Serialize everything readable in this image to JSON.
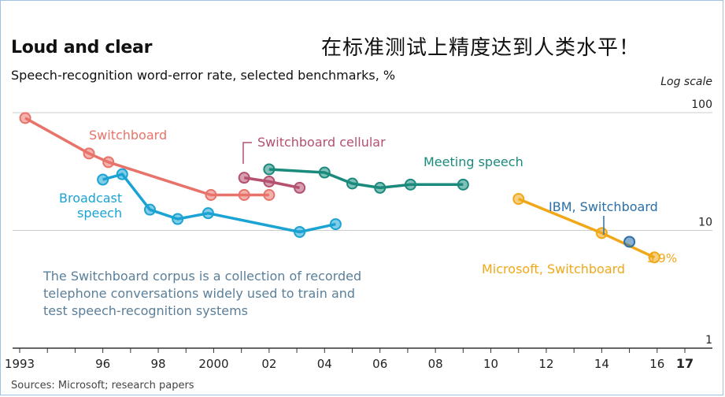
{
  "title": "Loud and clear",
  "cn_title": "在标准测试上精度达到人类水平！",
  "subtitle": "Speech-recognition word-error rate, selected benchmarks, %",
  "scale_note": "Log scale",
  "source": "Sources: Microsoft; research papers",
  "note": "The Switchboard corpus is a collection of recorded telephone conversations widely used to train and test speech-recognition systems",
  "colors": {
    "switchboard": "#e8736a",
    "switchboard_cellular": "#b5506f",
    "broadcast": "#1aa3d3",
    "meeting": "#1a8a7c",
    "microsoft": "#f0a818",
    "ibm": "#2a6fa8",
    "grid": "#cccccc",
    "axis": "#333333"
  },
  "chart_data": {
    "type": "line",
    "yscale": "log",
    "ylim": [
      1,
      100
    ],
    "yticks": [
      "1",
      "10",
      "100"
    ],
    "xlim": [
      1993,
      2017
    ],
    "xticks": [
      {
        "year": 1993,
        "label": "1993"
      },
      {
        "year": 1996,
        "label": "96"
      },
      {
        "year": 1998,
        "label": "98"
      },
      {
        "year": 2000,
        "label": "2000"
      },
      {
        "year": 2002,
        "label": "02"
      },
      {
        "year": 2004,
        "label": "04"
      },
      {
        "year": 2006,
        "label": "06"
      },
      {
        "year": 2008,
        "label": "08"
      },
      {
        "year": 2010,
        "label": "10"
      },
      {
        "year": 2012,
        "label": "12"
      },
      {
        "year": 2014,
        "label": "14"
      },
      {
        "year": 2016,
        "label": "16"
      },
      {
        "year": 2017,
        "label": "17"
      }
    ],
    "series": [
      {
        "name": "Switchboard",
        "key": "switchboard",
        "points": [
          [
            1993.2,
            90
          ],
          [
            1995.5,
            45
          ],
          [
            1996.2,
            38
          ],
          [
            1999.9,
            20
          ],
          [
            2001.1,
            20
          ],
          [
            2002.0,
            20
          ]
        ]
      },
      {
        "name": "Switchboard cellular",
        "key": "switchboard_cellular",
        "points": [
          [
            2001.1,
            28
          ],
          [
            2002.0,
            26
          ],
          [
            2003.1,
            23
          ]
        ]
      },
      {
        "name": "Broadcast speech",
        "key": "broadcast",
        "points": [
          [
            1996.0,
            27
          ],
          [
            1996.7,
            30
          ],
          [
            1997.7,
            15
          ],
          [
            1998.7,
            12.5
          ],
          [
            1999.8,
            14
          ],
          [
            2003.1,
            9.7
          ],
          [
            2004.4,
            11.3
          ]
        ]
      },
      {
        "name": "Meeting speech",
        "key": "meeting",
        "points": [
          [
            2002.0,
            33
          ],
          [
            2004.0,
            31
          ],
          [
            2005.0,
            25
          ],
          [
            2006.0,
            23
          ],
          [
            2007.1,
            24.5
          ],
          [
            2009.0,
            24.5
          ]
        ]
      },
      {
        "name": "Microsoft, Switchboard",
        "key": "microsoft",
        "points": [
          [
            2011.0,
            18.5
          ],
          [
            2014.0,
            9.5
          ],
          [
            2015.9,
            5.9
          ]
        ]
      },
      {
        "name": "IBM, Switchboard",
        "key": "ibm",
        "points": [
          [
            2015.0,
            8.0
          ]
        ]
      }
    ],
    "labels": {
      "switchboard": "Switchboard",
      "switchboard_cellular": "Switchboard cellular",
      "broadcast_1": "Broadcast",
      "broadcast_2": "speech",
      "meeting": "Meeting speech",
      "microsoft": "Microsoft, Switchboard",
      "ibm": "IBM, Switchboard",
      "end_value": "5.9%"
    }
  }
}
